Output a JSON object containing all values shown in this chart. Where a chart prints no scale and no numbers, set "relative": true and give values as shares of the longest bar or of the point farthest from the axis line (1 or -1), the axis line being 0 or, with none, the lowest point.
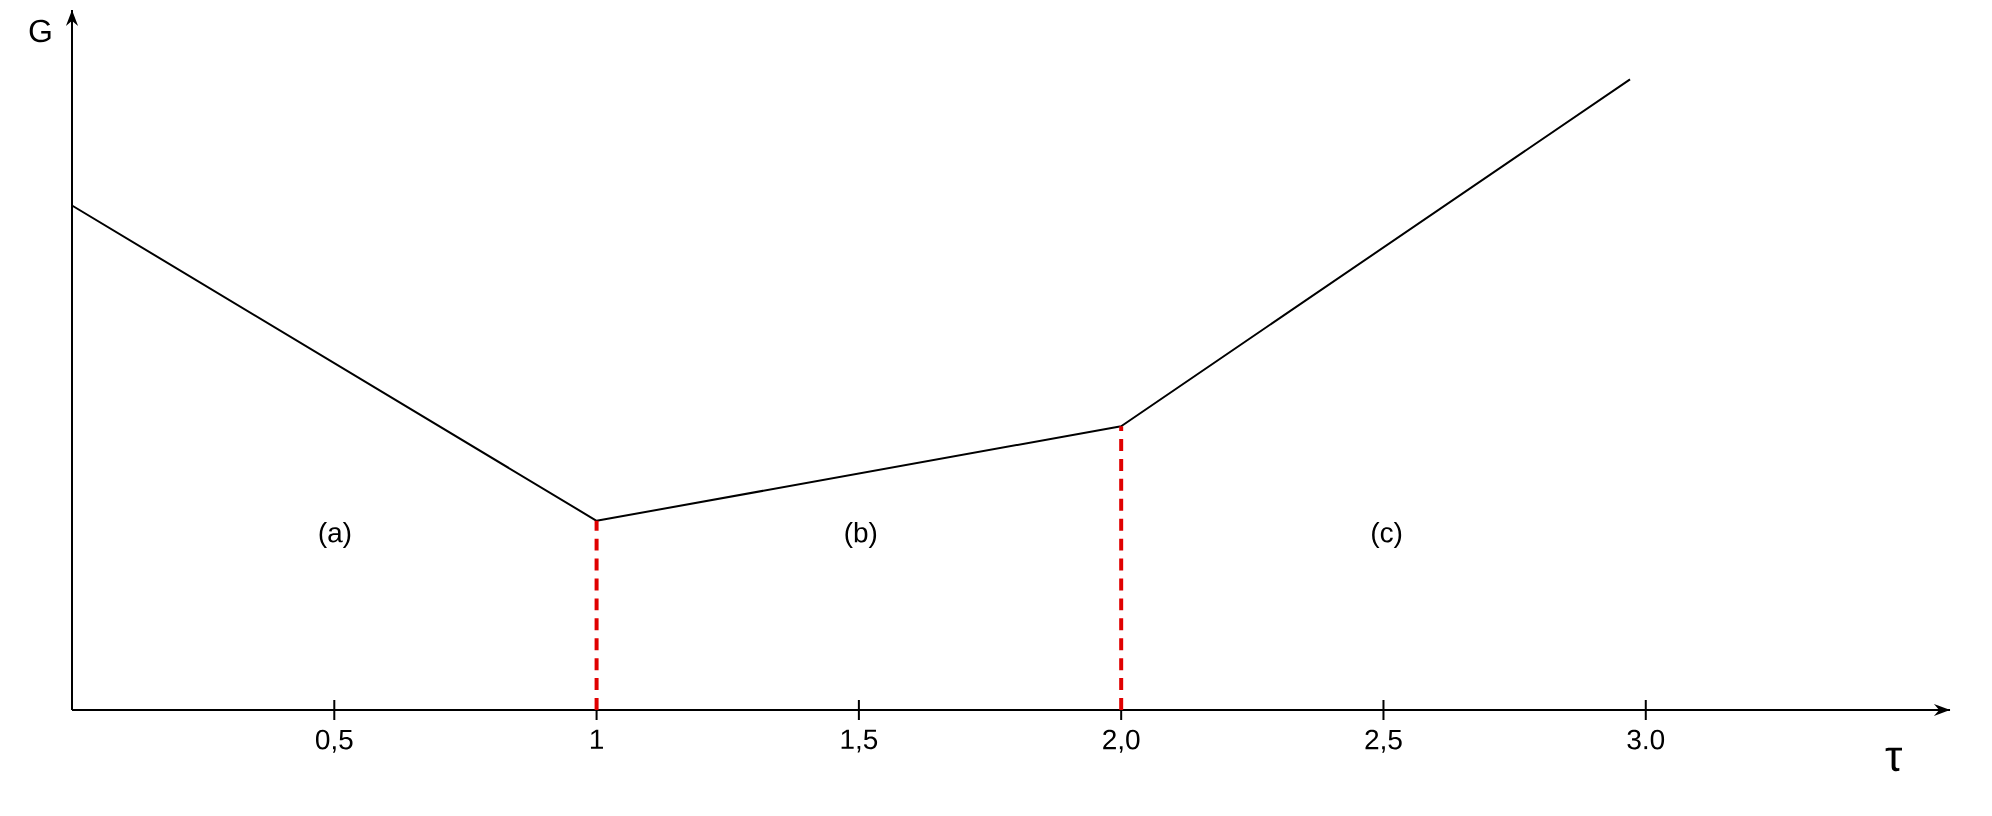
{
  "chart_data": {
    "type": "line",
    "relative": true,
    "xlabel": "τ",
    "ylabel": "G",
    "x": [
      0,
      1,
      2,
      2.97
    ],
    "series": [
      {
        "color": "#000000",
        "values": [
          0.8,
          0.3,
          0.45,
          1
        ]
      }
    ],
    "xlim": [
      0,
      3.58
    ],
    "xticks": [
      {
        "value": 0.5,
        "label": "0,5"
      },
      {
        "value": 1,
        "label": "1"
      },
      {
        "value": 1.5,
        "label": "1,5"
      },
      {
        "value": 2,
        "label": "2,0"
      },
      {
        "value": 2.5,
        "label": "2,5"
      },
      {
        "value": 3,
        "label": "3.0"
      }
    ],
    "ref_lines": [
      {
        "axis": "x",
        "value": 1,
        "color": "#e00000",
        "line_style": "dashed"
      },
      {
        "axis": "x",
        "value": 2,
        "color": "#e00000",
        "line_style": "dashed"
      }
    ],
    "annotations": [
      "(a)",
      "(b)",
      "(c)"
    ],
    "marker": "none",
    "line_style": "solid"
  }
}
